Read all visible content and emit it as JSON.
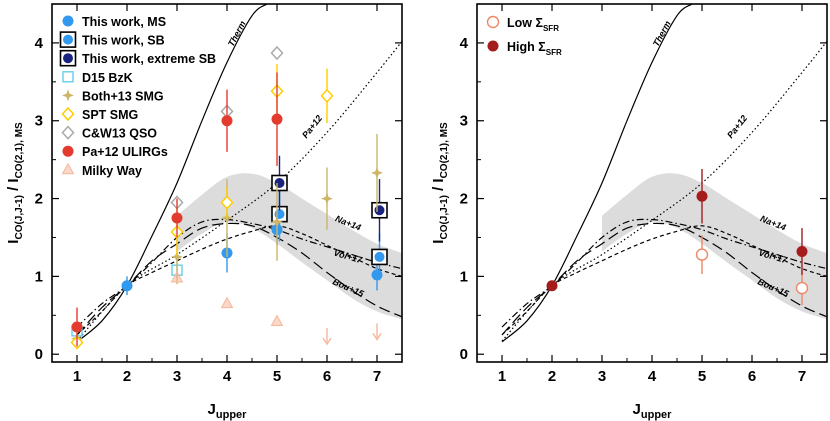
{
  "chart_data": [
    {
      "type": "scatter",
      "panel": "left",
      "xlabel_main": "J",
      "xlabel_sub": "upper",
      "ylabel_main": "I",
      "ylabel_sub1": "CO(J,J-1)",
      "ylabel_sep": " / I",
      "ylabel_sub2": "CO(2,1), MS",
      "xlim": [
        0.5,
        7.5
      ],
      "ylim": [
        -0.1,
        4.5
      ],
      "xticks": [
        1,
        2,
        3,
        4,
        5,
        6,
        7
      ],
      "yticks": [
        0,
        1,
        2,
        3,
        4
      ],
      "grid": false,
      "legend_position": "top-left",
      "legend": [
        {
          "label": "This work, MS",
          "marker": "circle-filled",
          "color": "#3399ee"
        },
        {
          "label": "This work, SB",
          "marker": "circle-in-square",
          "color": "#3399ee"
        },
        {
          "label": "This work, extreme SB",
          "marker": "circle-in-square",
          "color": "#1a237e"
        },
        {
          "label": "D15 BzK",
          "marker": "square-open",
          "color": "#66ccee"
        },
        {
          "label": "Both+13 SMG",
          "marker": "star",
          "color": "#ccb566"
        },
        {
          "label": "SPT SMG",
          "marker": "diamond-open",
          "color": "#ffcc00"
        },
        {
          "label": "C&W13 QSO",
          "marker": "diamond-open",
          "color": "#aaaaaa"
        },
        {
          "label": "Pa+12 ULIRGs",
          "marker": "circle-filled",
          "color": "#e33b2e"
        },
        {
          "label": "Milky Way",
          "marker": "triangle",
          "color": "#f5b79c"
        }
      ],
      "models": [
        {
          "name": "Therm",
          "style": "solid",
          "x": [
            1,
            1.5,
            2,
            2.5,
            3,
            3.5,
            4,
            4.5,
            4.8
          ],
          "y": [
            0.16,
            0.43,
            0.88,
            1.52,
            2.2,
            3.0,
            3.75,
            4.35,
            4.5
          ]
        },
        {
          "name": "Pa+12",
          "style": "dotted",
          "x": [
            1,
            2,
            3,
            4,
            5,
            6,
            7,
            7.5
          ],
          "y": [
            0.17,
            0.88,
            1.28,
            1.72,
            2.2,
            2.85,
            3.62,
            4.02
          ]
        },
        {
          "name": "Na+14",
          "style": "dash-dot",
          "x": [
            1,
            1.5,
            2,
            2.5,
            3,
            3.5,
            4,
            4.5,
            5,
            5.5,
            6,
            6.5,
            7,
            7.5
          ],
          "y": [
            0.35,
            0.65,
            0.88,
            1.18,
            1.5,
            1.7,
            1.73,
            1.68,
            1.6,
            1.48,
            1.38,
            1.28,
            1.18,
            1.1
          ]
        },
        {
          "name": "Vol+17",
          "style": "dashed-short",
          "x": [
            1,
            1.5,
            2,
            2.5,
            3,
            3.5,
            4,
            4.5,
            5,
            5.5,
            6,
            6.5,
            7,
            7.5
          ],
          "y": [
            0.25,
            0.55,
            0.88,
            1.05,
            1.2,
            1.35,
            1.48,
            1.58,
            1.65,
            1.55,
            1.4,
            1.25,
            1.1,
            1.0
          ]
        },
        {
          "name": "Bou+15",
          "style": "dashed-long",
          "x": [
            1,
            1.5,
            2,
            2.5,
            3,
            3.5,
            4,
            4.5,
            5,
            5.5,
            6,
            6.5,
            7,
            7.5
          ],
          "y": [
            0.25,
            0.6,
            0.88,
            1.2,
            1.42,
            1.62,
            1.68,
            1.65,
            1.5,
            1.3,
            1.05,
            0.82,
            0.62,
            0.48
          ]
        }
      ],
      "band": {
        "x": [
          3,
          3.5,
          4,
          4.5,
          5,
          5.5,
          6,
          6.5,
          7,
          7.5
        ],
        "upper": [
          1.78,
          2.05,
          2.28,
          2.32,
          2.2,
          2.0,
          1.8,
          1.6,
          1.42,
          1.3
        ],
        "lower": [
          1.32,
          1.55,
          1.7,
          1.62,
          1.42,
          1.18,
          0.95,
          0.72,
          0.55,
          0.45
        ]
      },
      "series": [
        {
          "name": "This work, MS",
          "points": [
            {
              "x": 2,
              "y": 0.88,
              "err": 0.12
            },
            {
              "x": 4,
              "y": 1.3,
              "err": 0.25
            },
            {
              "x": 5,
              "y": 1.6,
              "err": 0.2
            },
            {
              "x": 7,
              "y": 1.02,
              "err": 0.2
            }
          ]
        },
        {
          "name": "This work, SB",
          "points": [
            {
              "x": 5.05,
              "y": 1.8,
              "err": 0.35
            },
            {
              "x": 7.05,
              "y": 1.25,
              "err": 0.3
            }
          ]
        },
        {
          "name": "This work, extreme SB",
          "points": [
            {
              "x": 5.05,
              "y": 2.2,
              "err": 0.35
            },
            {
              "x": 7.05,
              "y": 1.85,
              "err": 0.4
            }
          ]
        },
        {
          "name": "D15 BzK",
          "points": [
            {
              "x": 1,
              "y": 0.3,
              "err": 0
            },
            {
              "x": 3,
              "y": 1.08,
              "err": 0.1
            }
          ]
        },
        {
          "name": "Both+13 SMG",
          "points": [
            {
              "x": 1,
              "y": 0.2,
              "err": 0.05
            },
            {
              "x": 3,
              "y": 1.25,
              "err": 0.35
            },
            {
              "x": 4,
              "y": 1.75,
              "err": 0.5
            },
            {
              "x": 5,
              "y": 1.7,
              "err": 0.5
            },
            {
              "x": 6,
              "y": 2.0,
              "err": 0.4
            },
            {
              "x": 7,
              "y": 2.33,
              "err": 0.5
            }
          ]
        },
        {
          "name": "SPT SMG",
          "points": [
            {
              "x": 1,
              "y": 0.15,
              "err": 0
            },
            {
              "x": 3,
              "y": 1.57,
              "err": 0.3
            },
            {
              "x": 4,
              "y": 1.95,
              "err": 0.2
            },
            {
              "x": 5,
              "y": 3.38,
              "err": 0.35
            },
            {
              "x": 6,
              "y": 3.32,
              "err": 0.35
            }
          ]
        },
        {
          "name": "C&W13 QSO",
          "points": [
            {
              "x": 3,
              "y": 1.95,
              "err": 0
            },
            {
              "x": 4,
              "y": 3.12,
              "err": 0
            },
            {
              "x": 5,
              "y": 3.87,
              "err": 0
            }
          ]
        },
        {
          "name": "Pa+12 ULIRGs",
          "points": [
            {
              "x": 1,
              "y": 0.35,
              "err": 0.25
            },
            {
              "x": 3,
              "y": 1.75,
              "err": 0.25
            },
            {
              "x": 4,
              "y": 3.0,
              "err": 0.4
            },
            {
              "x": 5,
              "y": 3.02,
              "err": 0.6
            }
          ]
        },
        {
          "name": "Milky Way",
          "points": [
            {
              "x": 3,
              "y": 0.98,
              "upper_limit": false
            },
            {
              "x": 4,
              "y": 0.65,
              "upper_limit": false
            },
            {
              "x": 5,
              "y": 0.42,
              "upper_limit": false
            },
            {
              "x": 6,
              "y": 0.22,
              "upper_limit": true
            },
            {
              "x": 7,
              "y": 0.28,
              "upper_limit": true
            }
          ]
        }
      ]
    },
    {
      "type": "scatter",
      "panel": "right",
      "xlabel_main": "J",
      "xlabel_sub": "upper",
      "ylabel_main": "I",
      "ylabel_sub1": "CO(J,J-1)",
      "ylabel_sep": " / I",
      "ylabel_sub2": "CO(2,1), MS",
      "xlim": [
        0.5,
        7.5
      ],
      "ylim": [
        -0.1,
        4.5
      ],
      "xticks": [
        1,
        2,
        3,
        4,
        5,
        6,
        7
      ],
      "yticks": [
        0,
        1,
        2,
        3,
        4
      ],
      "grid": false,
      "legend_position": "top-left",
      "legend": [
        {
          "label_main": "Low Σ",
          "label_sub": "SFR",
          "marker": "circle-open",
          "color": "#ee8866"
        },
        {
          "label_main": "High Σ",
          "label_sub": "SFR",
          "marker": "circle-filled",
          "color": "#a51c1c"
        }
      ],
      "series": [
        {
          "name": "Low ΣSFR",
          "points": [
            {
              "x": 5,
              "y": 1.28,
              "err": 0.25
            },
            {
              "x": 7,
              "y": 0.85,
              "err": 0.22
            }
          ]
        },
        {
          "name": "High ΣSFR",
          "points": [
            {
              "x": 2,
              "y": 0.88,
              "err": 0.05
            },
            {
              "x": 5,
              "y": 2.03,
              "err": 0.35
            },
            {
              "x": 7,
              "y": 1.32,
              "err": 0.3
            }
          ]
        }
      ]
    }
  ]
}
